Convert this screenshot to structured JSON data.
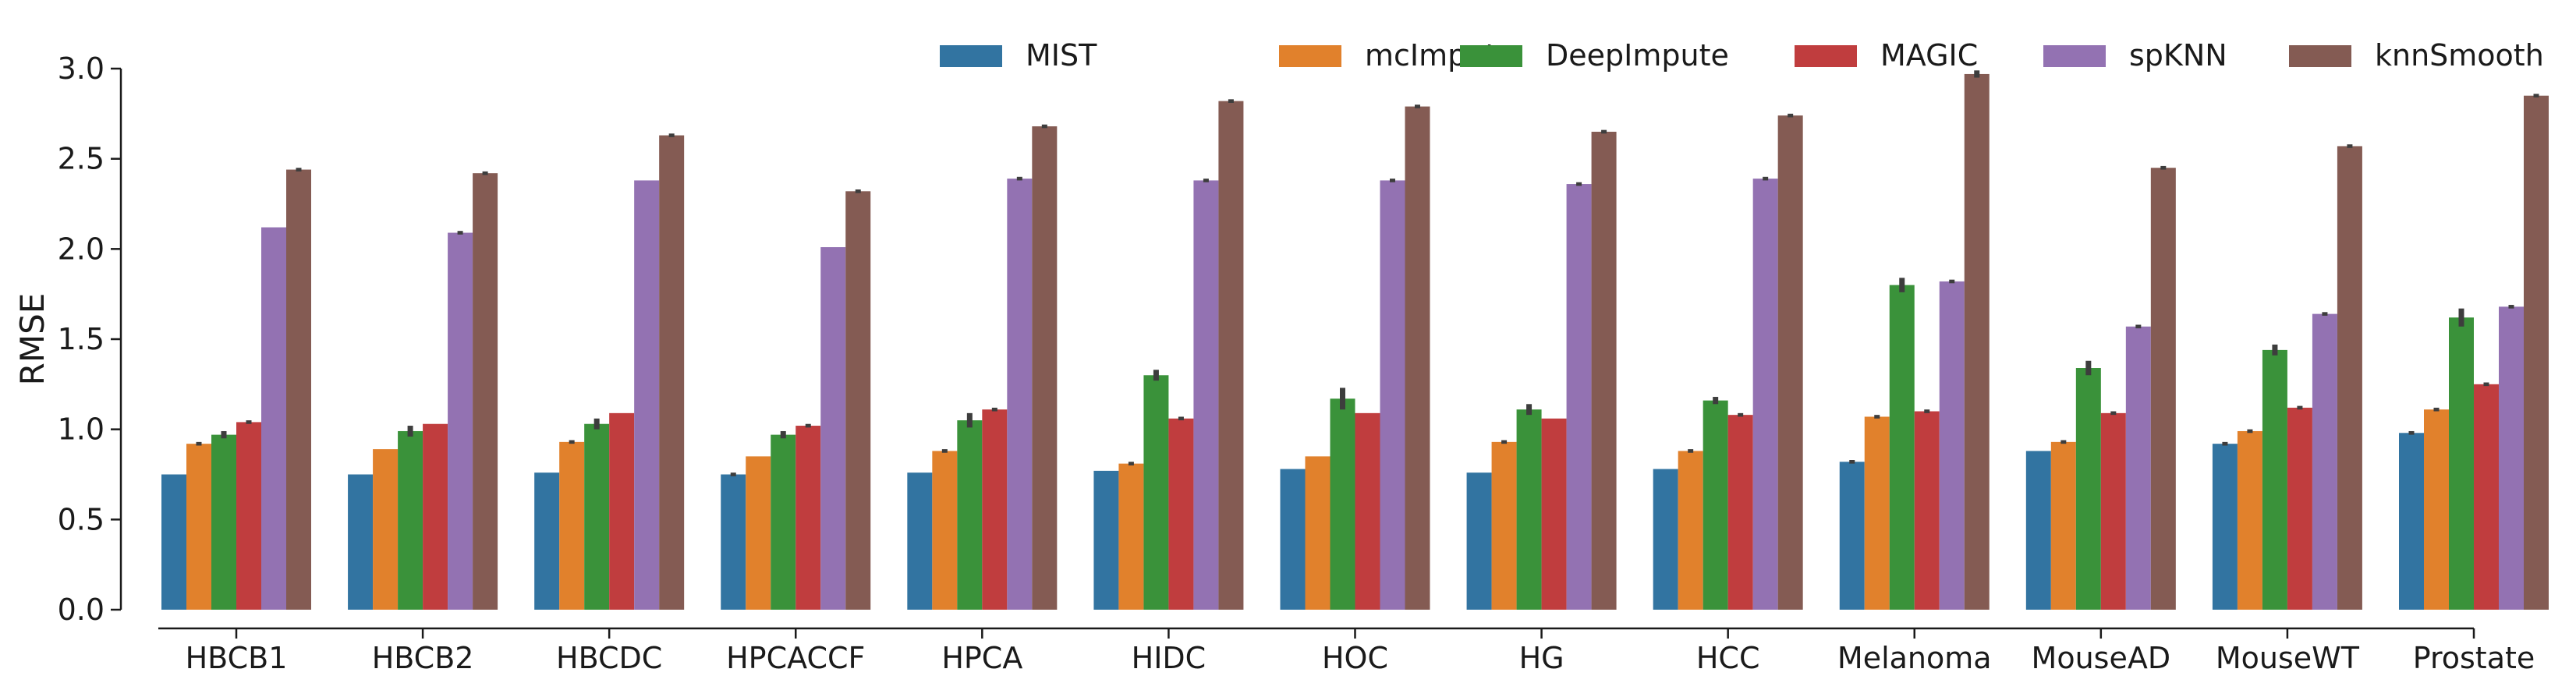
{
  "chart_data": {
    "type": "bar",
    "ylabel": "RMSE",
    "xlabel": "",
    "ylim": [
      0.0,
      3.0
    ],
    "yticks": [
      "0.0",
      "0.5",
      "1.0",
      "1.5",
      "2.0",
      "2.5",
      "3.0"
    ],
    "grid": false,
    "legend_position": "top",
    "categories": [
      "HBCB1",
      "HBCB2",
      "HBCDC",
      "HPCACCF",
      "HPCA",
      "HIDC",
      "HOC",
      "HG",
      "HCC",
      "Melanoma",
      "MouseAD",
      "MouseWT",
      "Prostate"
    ],
    "series": [
      {
        "name": "MIST",
        "color": "#3274a1",
        "values": [
          0.75,
          0.75,
          0.76,
          0.75,
          0.76,
          0.77,
          0.78,
          0.76,
          0.78,
          0.82,
          0.88,
          0.92,
          0.98
        ],
        "errors": [
          0,
          0,
          0,
          0.01,
          0,
          0,
          0,
          0,
          0,
          0.01,
          0,
          0.01,
          0.01
        ]
      },
      {
        "name": "mcImpute",
        "color": "#e1812c",
        "values": [
          0.92,
          0.89,
          0.93,
          0.85,
          0.88,
          0.81,
          0.85,
          0.93,
          0.88,
          1.07,
          0.93,
          0.99,
          1.11
        ],
        "errors": [
          0.01,
          0,
          0.01,
          0,
          0.01,
          0.01,
          0,
          0.01,
          0.01,
          0.01,
          0.01,
          0.01,
          0.01
        ]
      },
      {
        "name": "DeepImpute",
        "color": "#3a923a",
        "values": [
          0.97,
          0.99,
          1.03,
          0.97,
          1.05,
          1.3,
          1.17,
          1.11,
          1.16,
          1.8,
          1.34,
          1.44,
          1.62
        ],
        "errors": [
          0.02,
          0.03,
          0.03,
          0.02,
          0.04,
          0.03,
          0.06,
          0.03,
          0.02,
          0.04,
          0.04,
          0.03,
          0.05
        ]
      },
      {
        "name": "MAGIC",
        "color": "#c03d3e",
        "values": [
          1.04,
          1.03,
          1.09,
          1.02,
          1.11,
          1.06,
          1.09,
          1.06,
          1.08,
          1.1,
          1.09,
          1.12,
          1.25
        ],
        "errors": [
          0.01,
          0,
          0,
          0.01,
          0.01,
          0.01,
          0,
          0,
          0.01,
          0.01,
          0.01,
          0.01,
          0.01
        ]
      },
      {
        "name": "spKNN",
        "color": "#9372b2",
        "values": [
          2.12,
          2.09,
          2.38,
          2.01,
          2.39,
          2.38,
          2.38,
          2.36,
          2.39,
          1.82,
          1.57,
          1.64,
          1.68
        ],
        "errors": [
          0,
          0.01,
          0,
          0,
          0.01,
          0.01,
          0.01,
          0.01,
          0.01,
          0.01,
          0.01,
          0.01,
          0.01
        ]
      },
      {
        "name": "knnSmooth",
        "color": "#845b53",
        "values": [
          2.44,
          2.42,
          2.63,
          2.32,
          2.68,
          2.82,
          2.79,
          2.65,
          2.74,
          2.97,
          2.45,
          2.57,
          2.85
        ],
        "errors": [
          0.01,
          0.01,
          0.01,
          0.01,
          0.01,
          0.01,
          0.01,
          0.01,
          0.01,
          0.02,
          0.01,
          0.01,
          0.01
        ]
      }
    ]
  }
}
